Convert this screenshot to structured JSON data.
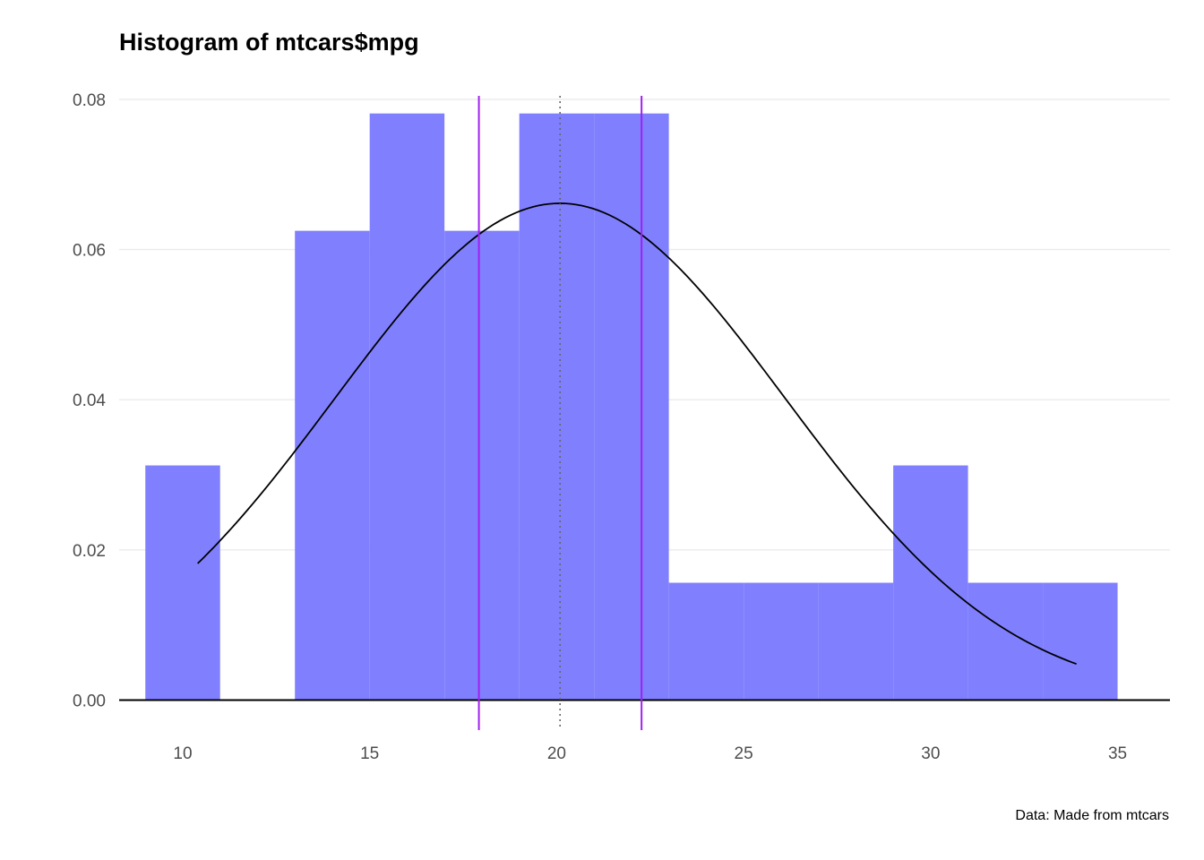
{
  "chart_data": {
    "type": "bar",
    "title": "Histogram of mtcars$mpg",
    "caption": "Data: Made from mtcars",
    "xlabel": "",
    "ylabel": "",
    "xlim": [
      8.3,
      36.4
    ],
    "ylim": [
      -0.004,
      0.0825
    ],
    "x_ticks": [
      10,
      15,
      20,
      25,
      30,
      35
    ],
    "x_tick_labels": [
      "10",
      "15",
      "20",
      "25",
      "30",
      "35"
    ],
    "y_ticks": [
      0,
      0.02,
      0.04,
      0.06,
      0.08
    ],
    "y_tick_labels": [
      "0.00",
      "0.02",
      "0.04",
      "0.06",
      "0.08"
    ],
    "grid": "horizontal",
    "bars": [
      {
        "x0": 9,
        "x1": 11,
        "density": 0.03125
      },
      {
        "x0": 11,
        "x1": 13,
        "density": 0
      },
      {
        "x0": 13,
        "x1": 15,
        "density": 0.0625
      },
      {
        "x0": 15,
        "x1": 17,
        "density": 0.078125
      },
      {
        "x0": 17,
        "x1": 19,
        "density": 0.0625
      },
      {
        "x0": 19,
        "x1": 21,
        "density": 0.078125
      },
      {
        "x0": 21,
        "x1": 23,
        "density": 0.078125
      },
      {
        "x0": 23,
        "x1": 25,
        "density": 0.015625
      },
      {
        "x0": 25,
        "x1": 27,
        "density": 0.015625
      },
      {
        "x0": 27,
        "x1": 29,
        "density": 0.015625
      },
      {
        "x0": 29,
        "x1": 31,
        "density": 0.03125
      },
      {
        "x0": 31,
        "x1": 33,
        "density": 0.015625
      },
      {
        "x0": 33,
        "x1": 35,
        "density": 0.015625
      }
    ],
    "density_curve": {
      "type": "normal",
      "mean": 20.09,
      "sd": 6.03,
      "x_range": [
        10.4,
        33.9
      ]
    },
    "reference_lines": [
      {
        "x": 17.92,
        "style": "solid",
        "color": "#a020f0"
      },
      {
        "x": 20.09,
        "style": "dotted",
        "color": "#666666"
      },
      {
        "x": 22.27,
        "style": "solid",
        "color": "#a020f0"
      }
    ],
    "colors": {
      "bar_fill": "#8080ff",
      "curve": "#000000",
      "grid": "#ebebeb",
      "baseline": "#000000"
    }
  }
}
